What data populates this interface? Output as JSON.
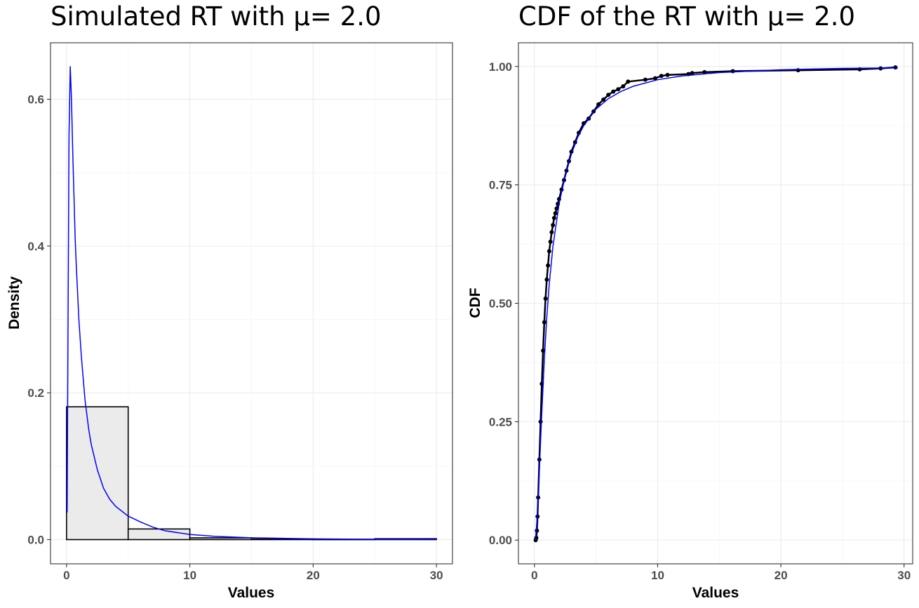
{
  "chart_data": [
    {
      "type": "bar",
      "title": "Simulated RT with μ= 2.0",
      "xlabel": "Values",
      "ylabel": "Density",
      "xlim": [
        -1.3,
        31.3
      ],
      "ylim": [
        -0.033,
        0.677
      ],
      "xticks": [
        0,
        10,
        20,
        30
      ],
      "xtick_labels": [
        "0",
        "10",
        "20",
        "30"
      ],
      "yticks": [
        0.0,
        0.2,
        0.4,
        0.6
      ],
      "ytick_labels": [
        "0.0",
        "0.2",
        "0.4",
        "0.6"
      ],
      "grid": true,
      "bins": [
        {
          "start": 0,
          "end": 5,
          "density": 0.181
        },
        {
          "start": 5,
          "end": 10,
          "density": 0.0145
        },
        {
          "start": 10,
          "end": 15,
          "density": 0.0024
        },
        {
          "start": 15,
          "end": 20,
          "density": 0.0008
        },
        {
          "start": 20,
          "end": 25,
          "density": 0.0004
        },
        {
          "start": 25,
          "end": 30,
          "density": 0.0012
        }
      ],
      "bar_fill": "#ebebeb",
      "bar_stroke": "#000000",
      "curve": {
        "color": "#0000ff",
        "x": [
          0.05,
          0.1,
          0.2,
          0.3,
          0.4,
          0.5,
          0.6,
          0.7,
          0.8,
          1.0,
          1.2,
          1.5,
          1.8,
          2.0,
          2.5,
          3.0,
          3.5,
          4.0,
          5.0,
          6.0,
          7.0,
          8.0,
          10.0,
          12.0,
          15.0,
          20.0,
          25.0,
          30.0
        ],
        "y": [
          0.037,
          0.22,
          0.55,
          0.645,
          0.6,
          0.53,
          0.47,
          0.41,
          0.37,
          0.3,
          0.25,
          0.19,
          0.15,
          0.13,
          0.095,
          0.07,
          0.055,
          0.045,
          0.032,
          0.024,
          0.017,
          0.012,
          0.007,
          0.0045,
          0.0025,
          0.001,
          0.0004,
          0.0001
        ]
      }
    },
    {
      "type": "line",
      "title": "CDF of the RT with μ= 2.0",
      "xlabel": "Values",
      "ylabel": "CDF",
      "xlim": [
        -1.3,
        30.7
      ],
      "ylim": [
        -0.05,
        1.05
      ],
      "xticks": [
        0,
        10,
        20,
        30
      ],
      "xtick_labels": [
        "0",
        "10",
        "20",
        "30"
      ],
      "yticks": [
        0.0,
        0.25,
        0.5,
        0.75,
        1.0
      ],
      "ytick_labels": [
        "0.00",
        "0.25",
        "0.50",
        "0.75",
        "1.00"
      ],
      "grid": true,
      "series": [
        {
          "color": "#000000",
          "style": "points-connected",
          "x": [
            0.1,
            0.15,
            0.2,
            0.25,
            0.3,
            0.4,
            0.5,
            0.6,
            0.7,
            0.8,
            0.9,
            1.0,
            1.1,
            1.2,
            1.3,
            1.4,
            1.5,
            1.6,
            1.7,
            1.8,
            1.9,
            2.0,
            2.2,
            2.4,
            2.6,
            2.8,
            3.0,
            3.3,
            3.6,
            4.0,
            4.4,
            4.8,
            5.2,
            5.6,
            6.0,
            6.4,
            6.8,
            7.2,
            7.6,
            9.0,
            9.8,
            10.3,
            10.8,
            12.5,
            12.8,
            13.8,
            16.1,
            21.4,
            26.4,
            28.1,
            29.3
          ],
          "y": [
            0.0,
            0.005,
            0.02,
            0.05,
            0.09,
            0.17,
            0.25,
            0.33,
            0.4,
            0.46,
            0.51,
            0.55,
            0.58,
            0.61,
            0.63,
            0.65,
            0.665,
            0.68,
            0.69,
            0.7,
            0.71,
            0.72,
            0.74,
            0.76,
            0.78,
            0.8,
            0.82,
            0.84,
            0.86,
            0.88,
            0.89,
            0.905,
            0.92,
            0.93,
            0.94,
            0.947,
            0.952,
            0.958,
            0.968,
            0.972,
            0.975,
            0.98,
            0.982,
            0.984,
            0.986,
            0.988,
            0.99,
            0.992,
            0.994,
            0.996,
            0.998
          ]
        },
        {
          "color": "#0000ff",
          "style": "line",
          "x": [
            0.05,
            0.1,
            0.2,
            0.3,
            0.4,
            0.5,
            0.6,
            0.8,
            1.0,
            1.2,
            1.5,
            2.0,
            2.5,
            3.0,
            3.5,
            4.0,
            5.0,
            6.0,
            7.0,
            8.0,
            10.0,
            12.0,
            15.0,
            20.0,
            25.0,
            29.5
          ],
          "y": [
            0.0,
            0.006,
            0.04,
            0.09,
            0.15,
            0.21,
            0.27,
            0.38,
            0.47,
            0.54,
            0.62,
            0.71,
            0.77,
            0.815,
            0.85,
            0.875,
            0.91,
            0.932,
            0.947,
            0.958,
            0.972,
            0.98,
            0.987,
            0.993,
            0.996,
            0.997
          ]
        }
      ]
    }
  ]
}
